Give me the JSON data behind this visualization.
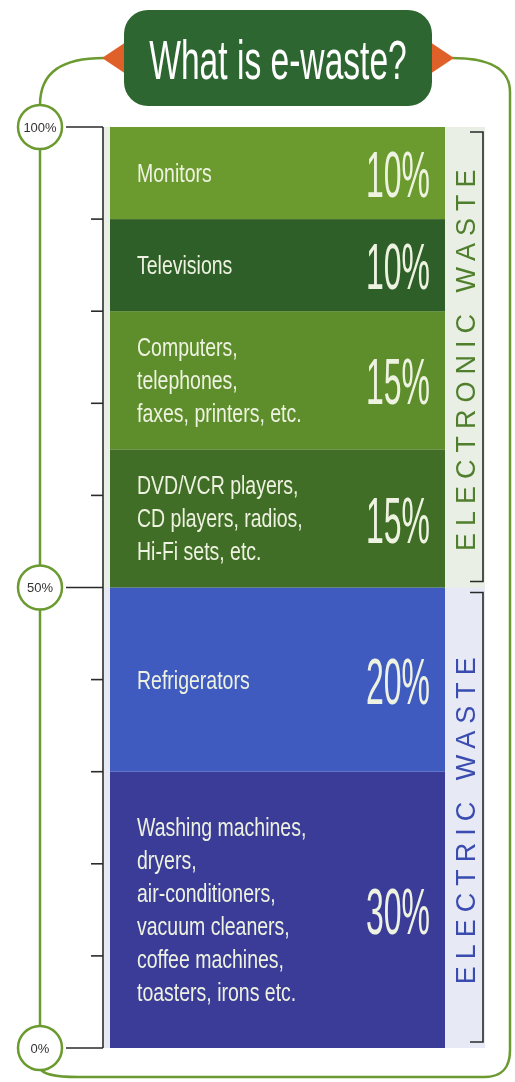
{
  "chart_data": {
    "type": "bar",
    "title": "What is e-waste?",
    "categories": [
      null
    ],
    "stacked": true,
    "series": [
      {
        "name": "Washing machines, dryers, air-conditioners, vacuum cleaners, coffee machines, toasters, irons etc.",
        "color": "#3a3c98",
        "values": [
          30
        ],
        "value_labels": [
          "30%"
        ]
      },
      {
        "name": "Refrigerators",
        "color": "#3f5bc0",
        "values": [
          20
        ],
        "value_labels": [
          "20%"
        ]
      },
      {
        "name": "DVD/VCR players, CD players, radios, Hi-Fi sets, etc.",
        "color": "#416e26",
        "values": [
          15
        ],
        "value_labels": [
          "15%"
        ]
      },
      {
        "name": "Computers, telephones, faxes, printers, etc.",
        "color": "#5e8e2c",
        "values": [
          15
        ],
        "value_labels": [
          "15%"
        ]
      },
      {
        "name": "Televisions",
        "color": "#2f5f28",
        "values": [
          10
        ],
        "value_labels": [
          "10%"
        ]
      },
      {
        "name": "Monitors",
        "color": "#6b9a2e",
        "values": [
          10
        ],
        "value_labels": [
          "10%"
        ]
      }
    ],
    "ylim": [
      0,
      100
    ],
    "yticks": [
      {
        "value": 0,
        "label": "0%"
      },
      {
        "value": 10,
        "label": null
      },
      {
        "value": 20,
        "label": null
      },
      {
        "value": 30,
        "label": null
      },
      {
        "value": 40,
        "label": null
      },
      {
        "value": 50,
        "label": "50%"
      },
      {
        "value": 60,
        "label": null
      },
      {
        "value": 70,
        "label": null
      },
      {
        "value": 80,
        "label": null
      },
      {
        "value": 90,
        "label": null
      },
      {
        "value": 100,
        "label": "100%"
      }
    ],
    "bands": [
      {
        "axis": "y",
        "from": 50,
        "to": 100,
        "label": "ELECTRONIC WASTE",
        "color": "#4f7f2c"
      },
      {
        "axis": "y",
        "from": 0,
        "to": 50,
        "label": "ELECTRIC WASTE",
        "color": "#3b4cb0"
      }
    ]
  }
}
